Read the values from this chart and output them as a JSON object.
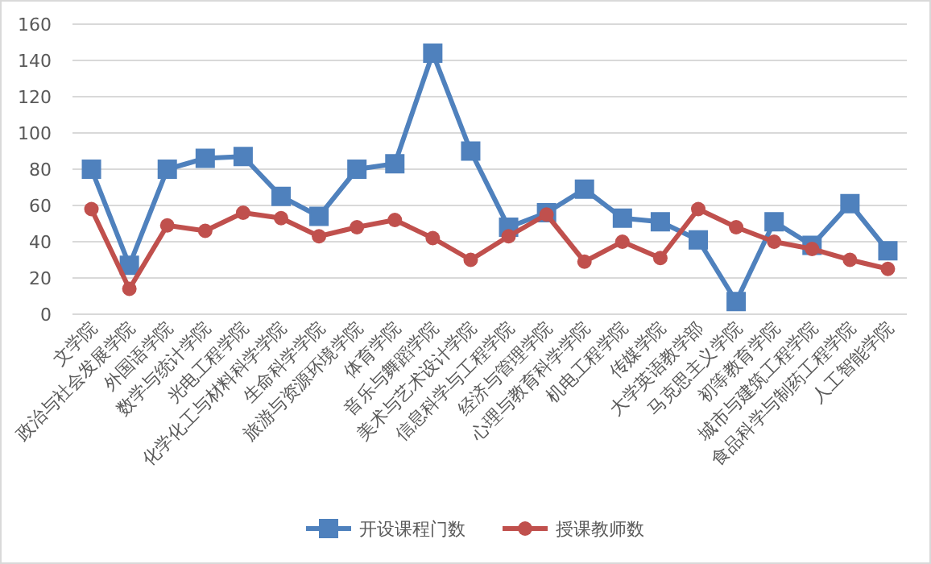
{
  "chart_data": {
    "type": "line",
    "categories": [
      "文学院",
      "政治与社会发展学院",
      "外国语学院",
      "数学与统计学院",
      "光电工程学院",
      "化学化工与材料科学学院",
      "生命科学学院",
      "旅游与资源环境学院",
      "体育学院",
      "音乐与舞蹈学院",
      "美术与艺术设计学院",
      "信息科学与工程学院",
      "经济与管理学院",
      "心理与教育科学学院",
      "机电工程学院",
      "传媒学院",
      "大学英语教学部",
      "马克思主义学院",
      "初等教育学院",
      "城市与建筑工程学院",
      "食品科学与制药工程学院",
      "人工智能学院"
    ],
    "series": [
      {
        "name": "开设课程门数",
        "color": "#4f81bd",
        "marker": "square",
        "values": [
          80,
          27,
          80,
          86,
          87,
          65,
          54,
          80,
          83,
          144,
          90,
          48,
          56,
          69,
          53,
          51,
          41,
          7,
          51,
          38,
          61,
          35
        ]
      },
      {
        "name": "授课教师数",
        "color": "#c0504d",
        "marker": "circle",
        "values": [
          58,
          14,
          49,
          46,
          56,
          53,
          43,
          48,
          52,
          42,
          30,
          43,
          55,
          29,
          40,
          31,
          58,
          48,
          40,
          36,
          30,
          25
        ]
      }
    ],
    "ylim": [
      0,
      160
    ],
    "yticks": [
      0,
      20,
      40,
      60,
      80,
      100,
      120,
      140,
      160
    ],
    "grid": "y",
    "legend": "bottom"
  }
}
